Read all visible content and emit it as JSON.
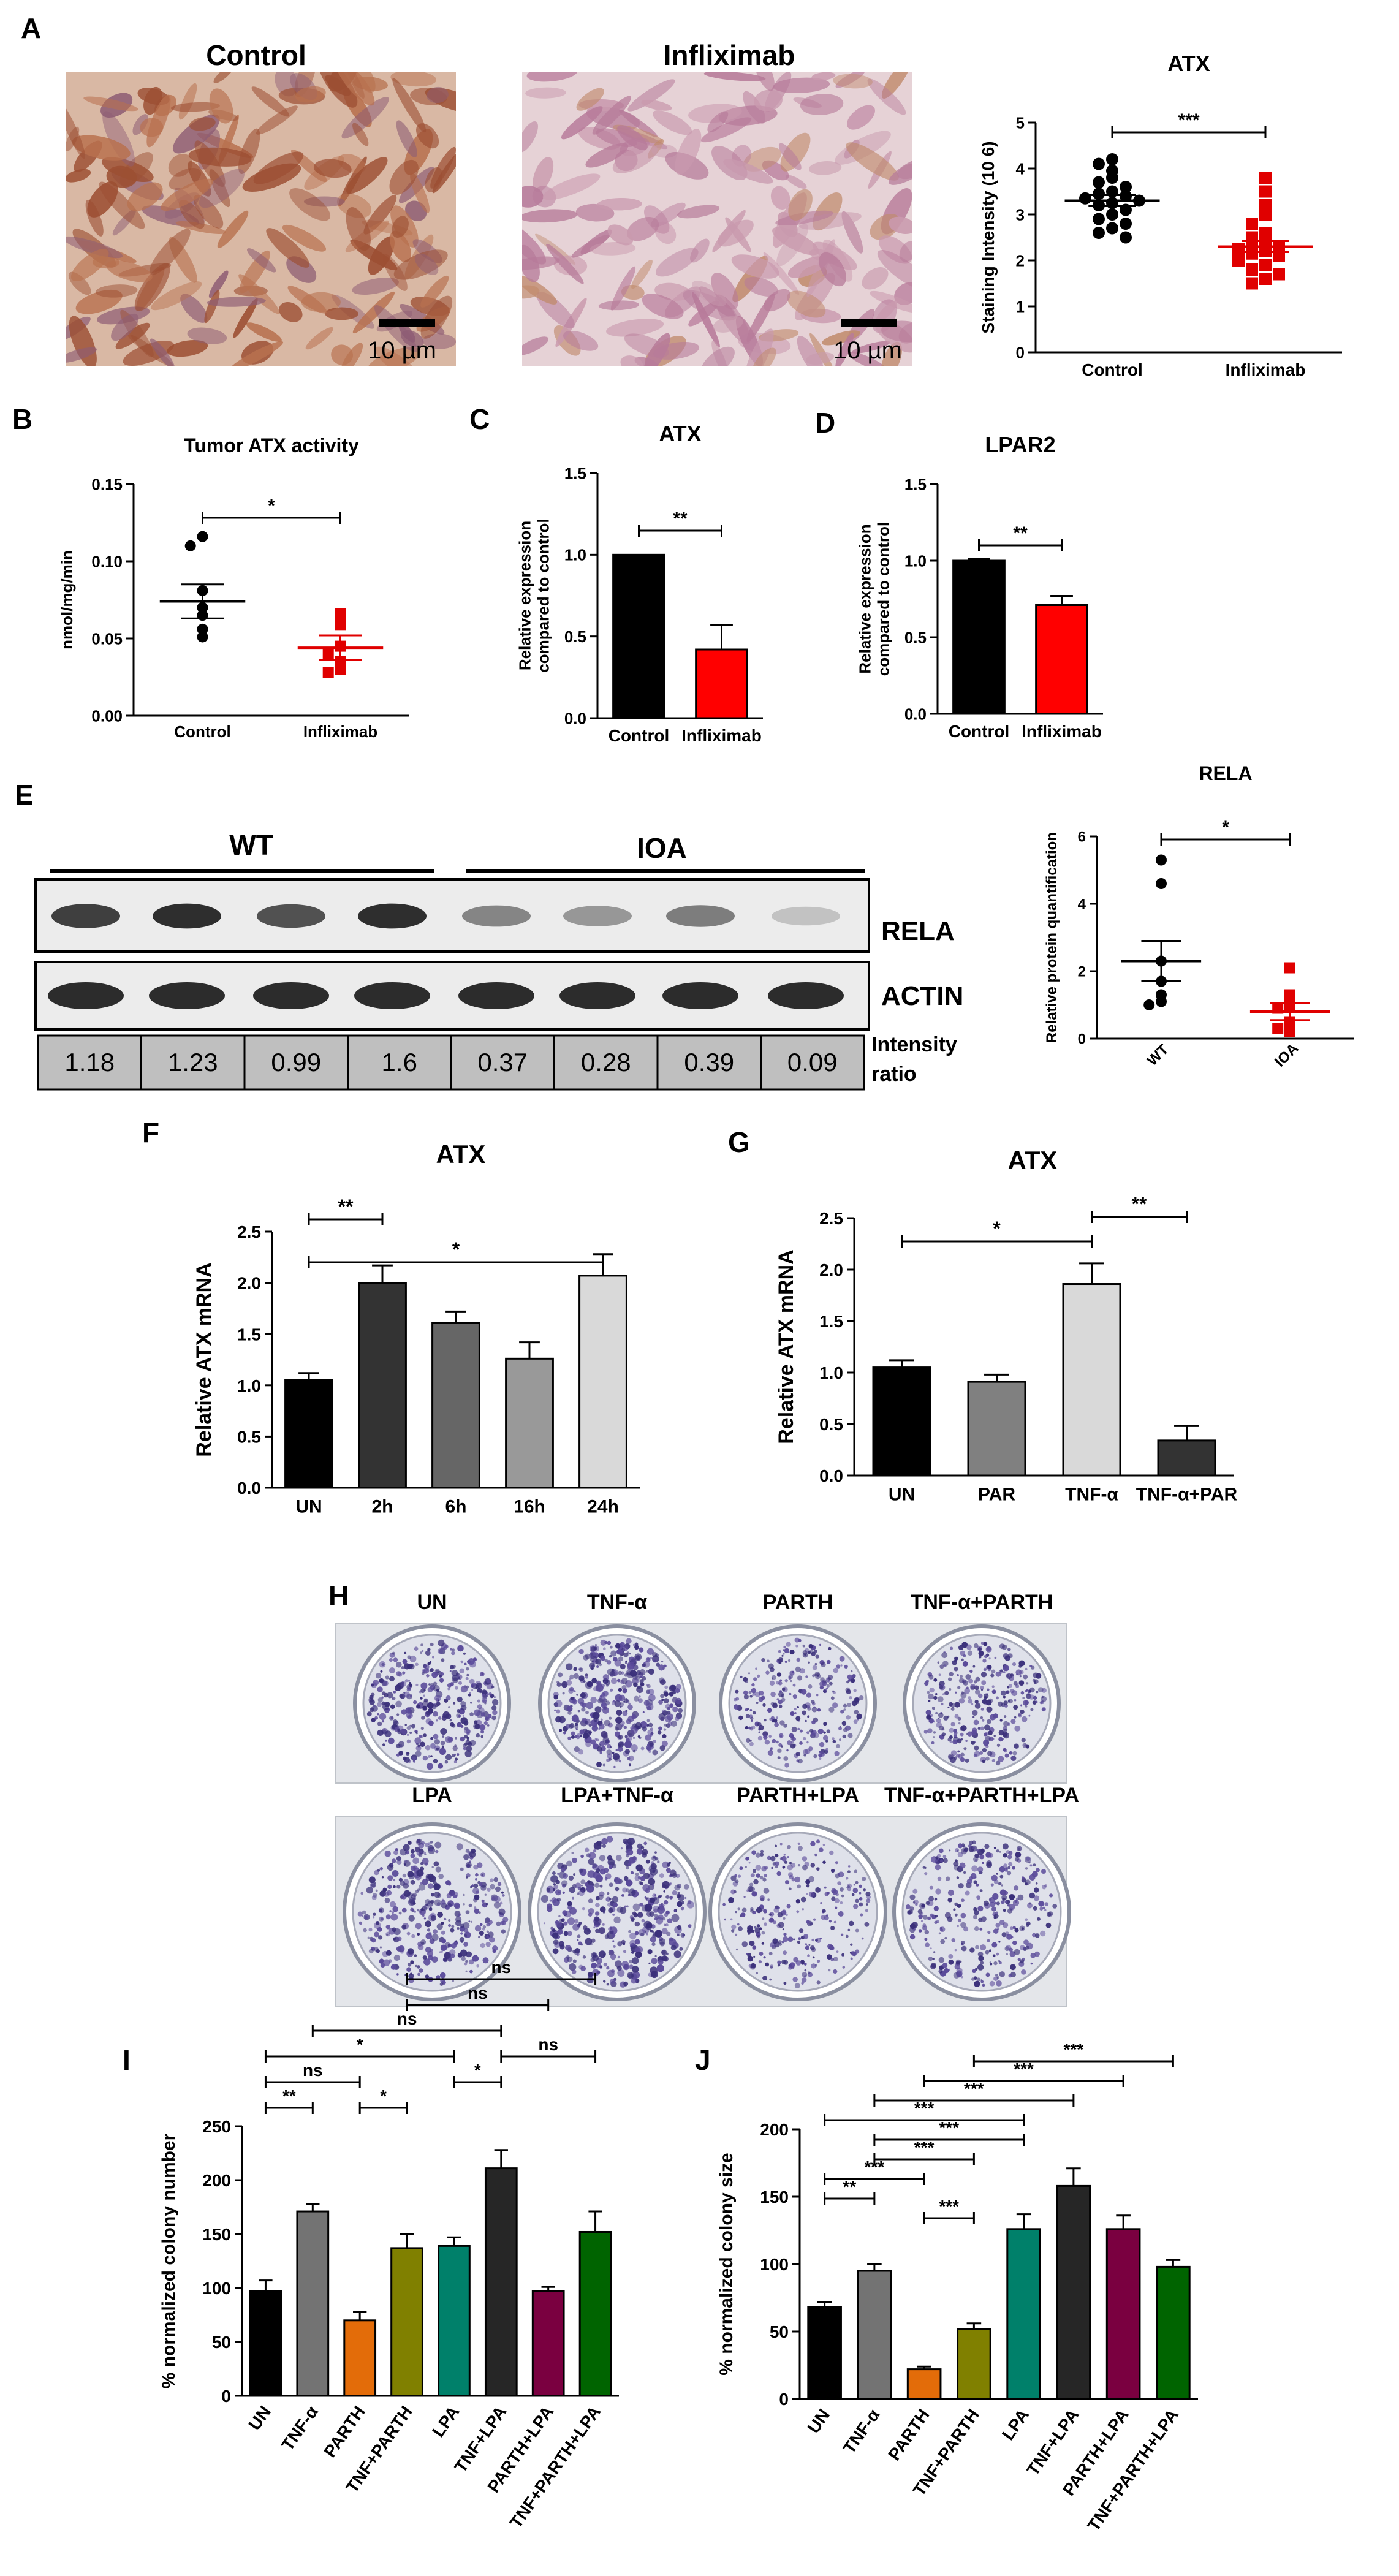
{
  "panel_letters": [
    "A",
    "B",
    "C",
    "D",
    "E",
    "F",
    "G",
    "H",
    "I",
    "J"
  ],
  "panelA": {
    "image_titles": [
      "Control",
      "Infliximab"
    ],
    "scale_label": "10 µm",
    "chart": {
      "type": "scatter",
      "title": "ATX",
      "ylabel": "Staining Intensity (10 6)",
      "categories": [
        "Control",
        "Infliximab"
      ],
      "yticks": [
        "0",
        "1",
        "2",
        "3",
        "4",
        "5"
      ],
      "ylim": [
        0,
        5
      ],
      "series": [
        {
          "color": "#000000",
          "mean": 3.3,
          "sem": 0.12,
          "values": [
            4.2,
            4.1,
            3.95,
            3.8,
            3.7,
            3.6,
            3.5,
            3.45,
            3.4,
            3.35,
            3.3,
            3.25,
            3.2,
            3.1,
            3.0,
            2.9,
            2.8,
            2.7,
            2.6,
            2.5
          ]
        },
        {
          "color": "#e00000",
          "mean": 2.3,
          "sem": 0.12,
          "values": [
            3.8,
            3.5,
            3.2,
            3.0,
            2.8,
            2.6,
            2.5,
            2.4,
            2.35,
            2.3,
            2.25,
            2.2,
            2.15,
            2.1,
            2.0,
            1.9,
            1.8,
            1.7,
            1.6,
            1.5
          ]
        }
      ],
      "significance": "***"
    }
  },
  "panelB": {
    "type": "scatter",
    "title": "Tumor ATX activity",
    "ylabel": "nmol/mg/min",
    "categories": [
      "Control",
      "Infliximab"
    ],
    "yticks": [
      "0.00",
      "0.05",
      "0.10",
      "0.15"
    ],
    "ylim": [
      0,
      0.15
    ],
    "series": [
      {
        "color": "#000000",
        "mean": 0.074,
        "sem": 0.011,
        "values": [
          0.116,
          0.11,
          0.081,
          0.07,
          0.065,
          0.056,
          0.051
        ]
      },
      {
        "color": "#e00000",
        "mean": 0.044,
        "sem": 0.008,
        "values": [
          0.066,
          0.059,
          0.045,
          0.04,
          0.035,
          0.03,
          0.028
        ]
      }
    ],
    "significance": "*"
  },
  "panelC": {
    "type": "bar",
    "title": "ATX",
    "ylabel": "Relative expression compared to control",
    "categories": [
      "Control",
      "Infliximab"
    ],
    "yticks": [
      "0.0",
      "0.5",
      "1.0",
      "1.5"
    ],
    "ylim": [
      0,
      1.5
    ],
    "values": [
      1.0,
      0.42
    ],
    "errors": [
      0.0,
      0.15
    ],
    "colors": [
      "#000000",
      "#ff0000"
    ],
    "significance": "**"
  },
  "panelD": {
    "type": "bar",
    "title": "LPAR2",
    "ylabel": "Relative expression compared to control",
    "categories": [
      "Control",
      "Infliximab"
    ],
    "yticks": [
      "0.0",
      "0.5",
      "1.0",
      "1.5"
    ],
    "ylim": [
      0,
      1.5
    ],
    "values": [
      1.0,
      0.71
    ],
    "errors": [
      0.01,
      0.06
    ],
    "colors": [
      "#000000",
      "#ff0000"
    ],
    "significance": "**"
  },
  "panelE": {
    "groups": [
      "WT",
      "IOA"
    ],
    "band_labels": [
      "RELA",
      "ACTIN"
    ],
    "intensity_label": [
      "Intensity",
      "ratio"
    ],
    "ratios": [
      "1.18",
      "1.23",
      "0.99",
      "1.6",
      "0.37",
      "0.28",
      "0.39",
      "0.09"
    ],
    "rela_strength": [
      0.8,
      0.9,
      0.7,
      0.9,
      0.4,
      0.3,
      0.45,
      0.05
    ],
    "chart": {
      "type": "scatter",
      "title": "RELA",
      "ylabel": "Relative protein quantification",
      "categories": [
        "WT",
        "IOA"
      ],
      "yticks": [
        "0",
        "2",
        "4",
        "6"
      ],
      "ylim": [
        0,
        6
      ],
      "series": [
        {
          "color": "#000000",
          "mean": 2.3,
          "sem": 0.6,
          "values": [
            5.3,
            4.6,
            2.3,
            1.7,
            1.3,
            1.1,
            1.0
          ]
        },
        {
          "color": "#e00000",
          "mean": 0.8,
          "sem": 0.25,
          "values": [
            2.1,
            1.3,
            1.0,
            0.9,
            0.5,
            0.3,
            0.2
          ]
        }
      ],
      "significance": "*"
    }
  },
  "panelF": {
    "type": "bar",
    "title": "ATX",
    "ylabel": "Relative ATX mRNA",
    "categories": [
      "UN",
      "2h",
      "6h",
      "16h",
      "24h"
    ],
    "yticks": [
      "0.0",
      "0.5",
      "1.0",
      "1.5",
      "2.0",
      "2.5"
    ],
    "ylim": [
      0,
      2.5
    ],
    "values": [
      1.05,
      2.0,
      1.61,
      1.26,
      2.07
    ],
    "errors": [
      0.07,
      0.17,
      0.11,
      0.16,
      0.21
    ],
    "colors": [
      "#000000",
      "#333333",
      "#666666",
      "#999999",
      "#d9d9d9"
    ],
    "brackets": [
      {
        "from": 0,
        "to": 1,
        "label": "**"
      },
      {
        "from": 0,
        "to": 4,
        "label": "*"
      }
    ]
  },
  "panelG": {
    "type": "bar",
    "title": "ATX",
    "ylabel": "Relative ATX mRNA",
    "categories": [
      "UN",
      "PAR",
      "TNF-α",
      "TNF-α+PAR"
    ],
    "yticks": [
      "0.0",
      "0.5",
      "1.0",
      "1.5",
      "2.0",
      "2.5"
    ],
    "ylim": [
      0,
      2.5
    ],
    "values": [
      1.05,
      0.91,
      1.86,
      0.34
    ],
    "errors": [
      0.07,
      0.07,
      0.2,
      0.14
    ],
    "colors": [
      "#000000",
      "#808080",
      "#d9d9d9",
      "#333333"
    ],
    "brackets": [
      {
        "from": 0,
        "to": 2,
        "label": "*"
      },
      {
        "from": 2,
        "to": 3,
        "label": "**"
      }
    ]
  },
  "panelH": {
    "row1": [
      "UN",
      "TNF-α",
      "PARTH",
      "TNF-α+PARTH"
    ],
    "row2": [
      "LPA",
      "LPA+TNF-α",
      "PARTH+LPA",
      "TNF-α+PARTH+LPA"
    ],
    "density": [
      0.55,
      0.65,
      0.3,
      0.4,
      0.6,
      0.75,
      0.35,
      0.45
    ]
  },
  "panelI": {
    "type": "bar",
    "ylabel": "% normalized colony number",
    "categories": [
      "UN",
      "TNF-α",
      "PARTH",
      "TNF+PARTH",
      "LPA",
      "TNF+LPA",
      "PARTH+LPA",
      "TNF+PARTH+LPA"
    ],
    "yticks": [
      "0",
      "50",
      "100",
      "150",
      "200",
      "250"
    ],
    "ylim": [
      0,
      250
    ],
    "values": [
      97,
      171,
      70,
      137,
      139,
      211,
      97,
      152
    ],
    "errors": [
      10,
      7,
      8,
      13,
      8,
      17,
      4,
      19
    ],
    "colors": [
      "#000000",
      "#737373",
      "#e36c09",
      "#808000",
      "#00806a",
      "#262626",
      "#7a0040",
      "#006400"
    ],
    "brackets": [
      {
        "from": 0,
        "to": 1,
        "label": "**",
        "level": 0
      },
      {
        "from": 2,
        "to": 3,
        "label": "*",
        "level": 0
      },
      {
        "from": 0,
        "to": 2,
        "label": "ns",
        "level": 1
      },
      {
        "from": 4,
        "to": 5,
        "label": "*",
        "level": 1
      },
      {
        "from": 0,
        "to": 4,
        "label": "*",
        "level": 2
      },
      {
        "from": 5,
        "to": 7,
        "label": "ns",
        "level": 2
      },
      {
        "from": 1,
        "to": 5,
        "label": "ns",
        "level": 3
      },
      {
        "from": 3,
        "to": 6,
        "label": "ns",
        "level": 4
      },
      {
        "from": 3,
        "to": 7,
        "label": "ns",
        "level": 5
      }
    ]
  },
  "panelJ": {
    "type": "bar",
    "ylabel": "% normalized colony size",
    "categories": [
      "UN",
      "TNF-α",
      "PARTH",
      "TNF+PARTH",
      "LPA",
      "TNF+LPA",
      "PARTH+LPA",
      "TNF+PARTH+LPA"
    ],
    "yticks": [
      "0",
      "50",
      "100",
      "150",
      "200"
    ],
    "ylim": [
      0,
      200
    ],
    "values": [
      68,
      95,
      22,
      52,
      126,
      158,
      126,
      98
    ],
    "errors": [
      4,
      5,
      2,
      4,
      11,
      13,
      10,
      5
    ],
    "colors": [
      "#000000",
      "#737373",
      "#e36c09",
      "#808000",
      "#00806a",
      "#262626",
      "#7a0040",
      "#006400"
    ],
    "brackets": [
      {
        "from": 2,
        "to": 3,
        "label": "***",
        "level": 0
      },
      {
        "from": 0,
        "to": 1,
        "label": "**",
        "level": 1
      },
      {
        "from": 0,
        "to": 2,
        "label": "***",
        "level": 2
      },
      {
        "from": 1,
        "to": 3,
        "label": "***",
        "level": 3
      },
      {
        "from": 1,
        "to": 4,
        "label": "***",
        "level": 4
      },
      {
        "from": 0,
        "to": 4,
        "label": "***",
        "level": 5
      },
      {
        "from": 1,
        "to": 5,
        "label": "***",
        "level": 6
      },
      {
        "from": 2,
        "to": 6,
        "label": "***",
        "level": 7
      },
      {
        "from": 3,
        "to": 7,
        "label": "***",
        "level": 8
      }
    ]
  }
}
